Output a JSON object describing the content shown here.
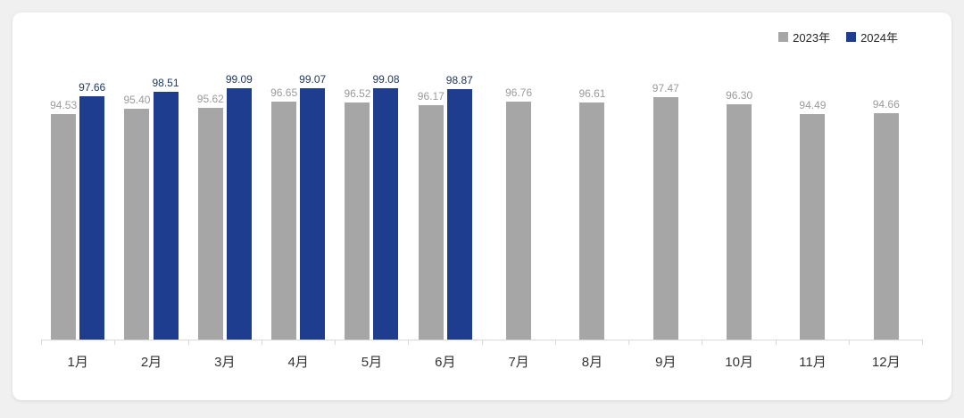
{
  "page": {
    "background_color": "#f0f0f1",
    "card_background_color": "#ffffff"
  },
  "legend": [
    {
      "label": "2023年",
      "color": "#a6a6a6"
    },
    {
      "label": "2024年",
      "color": "#1f3d8f"
    }
  ],
  "chart_data": {
    "type": "bar",
    "title": "",
    "xlabel": "",
    "ylabel": "",
    "categories": [
      "1月",
      "2月",
      "3月",
      "4月",
      "5月",
      "6月",
      "7月",
      "8月",
      "9月",
      "10月",
      "11月",
      "12月"
    ],
    "series": [
      {
        "name": "2023年",
        "color": "#a6a6a6",
        "label_color": "#9b9b9b",
        "values": [
          94.53,
          95.4,
          95.62,
          96.65,
          96.52,
          96.17,
          96.76,
          96.61,
          97.47,
          96.3,
          94.49,
          94.66
        ]
      },
      {
        "name": "2024年",
        "color": "#1f3d8f",
        "label_color": "#1f3864",
        "values": [
          97.66,
          98.51,
          99.09,
          99.07,
          99.08,
          98.87,
          null,
          null,
          null,
          null,
          null,
          null
        ]
      }
    ],
    "value_labels": true,
    "value_label_decimals": 2,
    "grid": false,
    "legend_position": "top-right",
    "ylim": [
      55,
      105
    ]
  }
}
